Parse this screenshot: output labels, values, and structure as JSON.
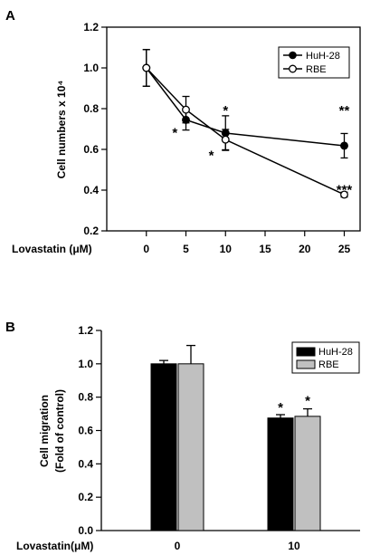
{
  "chart_data": [
    {
      "panel_label": "A",
      "type": "line",
      "x": [
        0,
        5,
        10,
        25
      ],
      "ylabel": "Cell numbers x 10⁴",
      "xlabel": "Lovastatin (μM)",
      "xlim": [
        -5,
        27
      ],
      "ylim": [
        0.2,
        1.2
      ],
      "xticks": [
        "0",
        "5",
        "10",
        "15",
        "20",
        "25"
      ],
      "yticks": [
        "0.2",
        "0.4",
        "0.6",
        "0.8",
        "1.0",
        "1.2"
      ],
      "legend_position": "top-right",
      "grid": false,
      "series": [
        {
          "name": "HuH-28",
          "marker": "filled-circle",
          "values": [
            1.0,
            0.745,
            0.68,
            0.618
          ],
          "errors": [
            0.09,
            0.05,
            0.085,
            0.06
          ]
        },
        {
          "name": "RBE",
          "marker": "open-circle",
          "values": [
            1.0,
            0.795,
            0.648,
            0.378
          ],
          "errors": [
            0.09,
            0.065,
            0.05,
            0.012
          ]
        }
      ],
      "annotations": [
        {
          "text": "*",
          "x": 3.6,
          "y": 0.7
        },
        {
          "text": "*",
          "x": 10,
          "y": 0.81
        },
        {
          "text": "*",
          "x": 8.2,
          "y": 0.59
        },
        {
          "text": "**",
          "x": 25,
          "y": 0.81
        },
        {
          "text": "***",
          "x": 25,
          "y": 0.42
        }
      ]
    },
    {
      "panel_label": "B",
      "type": "bar",
      "categories": [
        "0",
        "10"
      ],
      "ylabel_lines": [
        "Cell migration",
        "(Fold of control)"
      ],
      "xlabel": "Lovastatin(μM)",
      "ylim": [
        0.0,
        1.2
      ],
      "yticks": [
        "0.0",
        "0.2",
        "0.4",
        "0.6",
        "0.8",
        "1.0",
        "1.2"
      ],
      "legend_position": "top-right",
      "grid": false,
      "series": [
        {
          "name": "HuH-28",
          "color": "#000000",
          "values": [
            1.0,
            0.675
          ],
          "errors": [
            0.02,
            0.02
          ]
        },
        {
          "name": "RBE",
          "color": "#c0c0c0",
          "values": [
            1.0,
            0.685
          ],
          "errors": [
            0.11,
            0.045
          ]
        }
      ],
      "annotations": [
        {
          "text": "*",
          "category": 1,
          "series": 0,
          "y": 0.76
        },
        {
          "text": "*",
          "category": 1,
          "series": 1,
          "y": 0.8
        }
      ]
    }
  ]
}
